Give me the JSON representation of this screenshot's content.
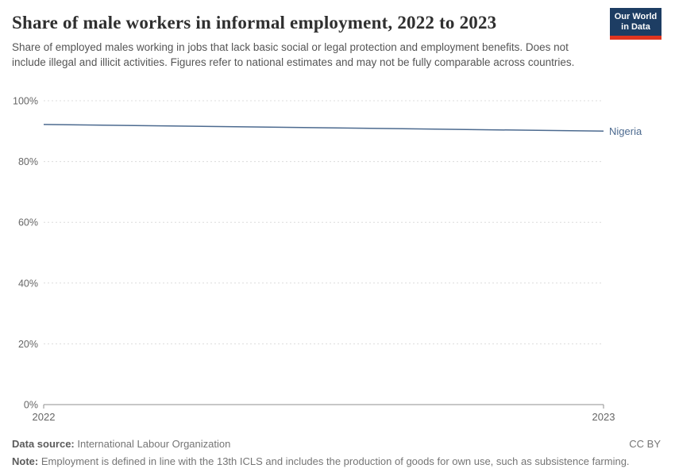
{
  "header": {
    "title": "Share of male workers in informal employment, 2022 to 2023",
    "subtitle": "Share of employed males working in jobs that lack basic social or legal protection and employment benefits. Does not include illegal and illicit activities. Figures refer to national estimates and may not be fully comparable across countries.",
    "logo": {
      "line1": "Our World",
      "line2": "in Data",
      "bg_color": "#1d3d63",
      "accent_color": "#e0351f"
    }
  },
  "chart_data": {
    "type": "line",
    "title": "Share of male workers in informal employment, 2022 to 2023",
    "x": [
      2022,
      2023
    ],
    "series": [
      {
        "name": "Nigeria",
        "values": [
          92.2,
          90
        ],
        "color": "#4c6a8f"
      }
    ],
    "xlabel": "",
    "ylabel": "",
    "ylim": [
      0,
      100
    ],
    "yticks": [
      0,
      20,
      40,
      60,
      80,
      100
    ],
    "ytick_suffix": "%",
    "xticks": [
      2022,
      2023
    ],
    "grid": true,
    "gridline_color": "#dcdcdc",
    "axis_color": "#8f8f8f",
    "tick_label_color": "#666666",
    "legend_position": "end-of-line-label"
  },
  "footer": {
    "source_label": "Data source:",
    "source": "International Labour Organization",
    "license": "CC BY",
    "note_label": "Note:",
    "note": "Employment is defined in line with the 13th ICLS and includes the production of goods for own use, such as subsistence farming."
  }
}
